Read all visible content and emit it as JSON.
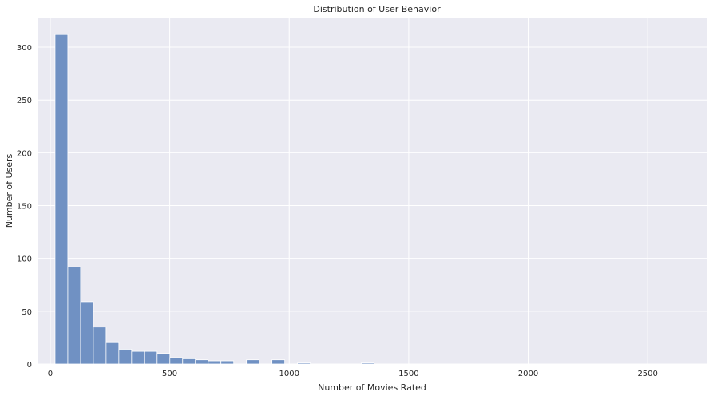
{
  "chart_data": {
    "type": "bar",
    "title": "Distribution of User Behavior",
    "xlabel": "Number of Movies Rated",
    "ylabel": "Number of Users",
    "xlim": [
      -50,
      2750
    ],
    "ylim": [
      0,
      328
    ],
    "xticks": [
      0,
      500,
      1000,
      1500,
      2000,
      2500
    ],
    "yticks": [
      0,
      50,
      100,
      150,
      200,
      250,
      300
    ],
    "grid": true,
    "legend": "none",
    "colors": {
      "bar": "#7091c3",
      "bar_edge": "#ffffff",
      "plot_bg": "#eaeaf2",
      "grid": "#ffffff"
    },
    "bin_start": 20,
    "bin_width": 53.4,
    "counts": [
      312,
      92,
      59,
      35,
      21,
      14,
      12,
      12,
      10,
      6,
      5,
      4,
      3,
      3,
      0,
      4,
      0,
      4,
      0,
      1,
      0,
      0,
      0,
      0,
      1
    ]
  }
}
